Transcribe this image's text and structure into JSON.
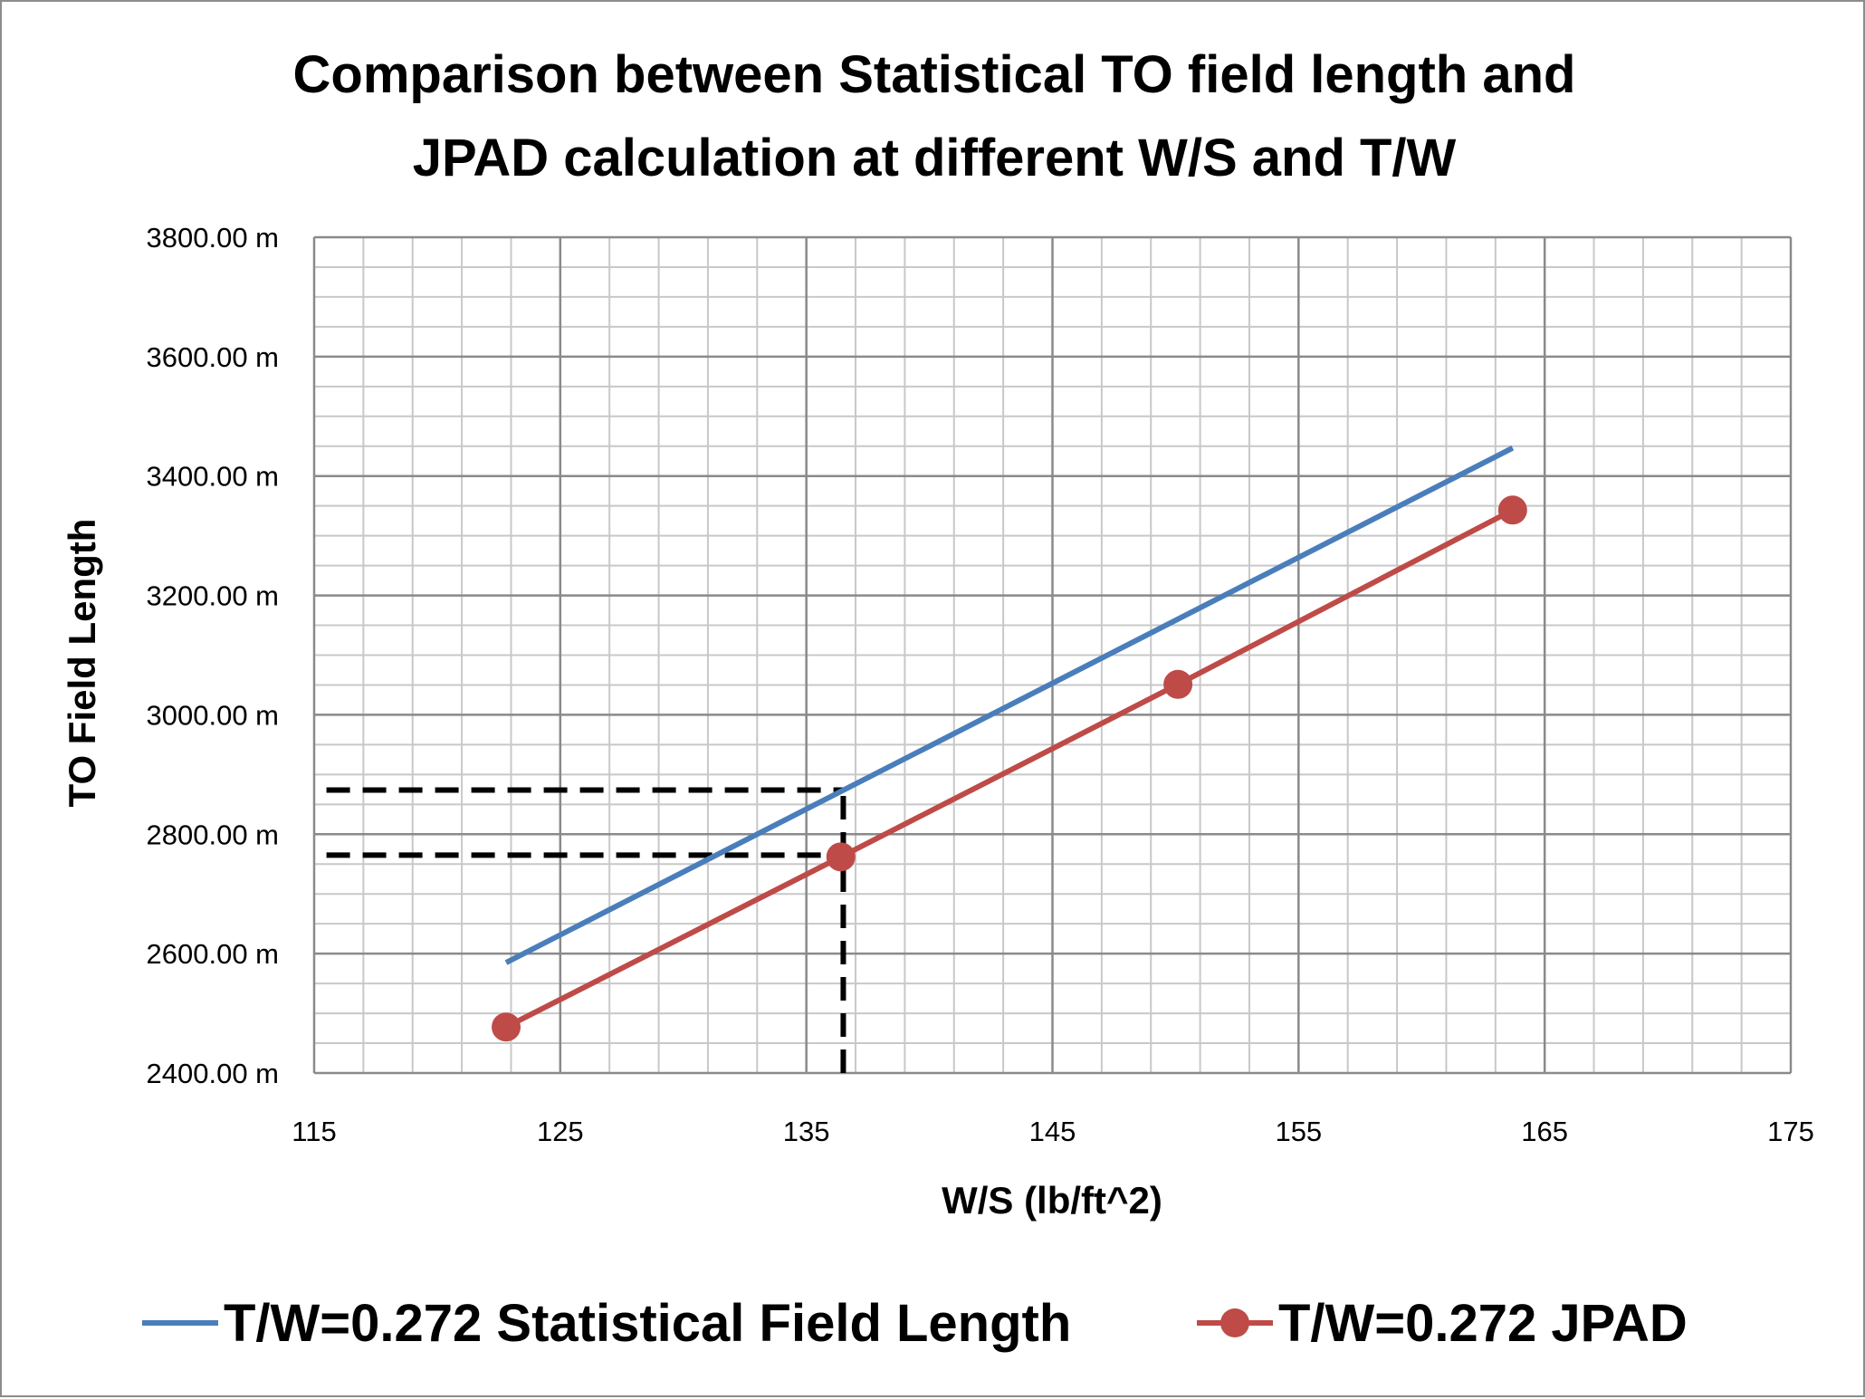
{
  "chart_data": {
    "type": "line",
    "title": "Comparison between Statistical TO field length and JPAD calculation at different W/S and T/W",
    "title_lines": [
      "Comparison between Statistical TO field length and",
      "JPAD calculation at different W/S and T/W"
    ],
    "xlabel": "W/S (lb/ft^2)",
    "ylabel": "TO Field Length",
    "xlim": [
      115,
      175
    ],
    "ylim": [
      2400,
      3800
    ],
    "x_major_step": 10,
    "x_minor_step": 2,
    "y_major_step": 200,
    "y_minor_step": 50,
    "x_tick_labels": [
      "115",
      "125",
      "135",
      "145",
      "155",
      "165",
      "175"
    ],
    "y_tick_labels": [
      "2400.00 m",
      "2600.00 m",
      "2800.00 m",
      "3000.00 m",
      "3200.00 m",
      "3400.00 m",
      "3600.00 m",
      "3800.00 m"
    ],
    "grid": true,
    "legend_position": "bottom",
    "series": [
      {
        "name": "T/W=0.272 Statistical Field Length",
        "color": "#4a7ebb",
        "markers": false,
        "x": [
          122.8,
          163.7
        ],
        "y": [
          2585,
          3447
        ]
      },
      {
        "name": "T/W=0.272 JPAD",
        "color": "#be4b48",
        "markers": true,
        "x": [
          122.8,
          136.4,
          150.1,
          163.7
        ],
        "y": [
          2477,
          2762,
          3051,
          3343
        ]
      }
    ],
    "annotations": [
      {
        "type": "dashed-horizontal",
        "color": "#000000",
        "x": [
          115.5,
          136.5
        ],
        "y": 2874
      },
      {
        "type": "dashed-horizontal",
        "color": "#000000",
        "x": [
          115.5,
          136.5
        ],
        "y": 2765
      },
      {
        "type": "dashed-vertical",
        "color": "#000000",
        "x": 136.5,
        "y": [
          2400,
          2874
        ]
      }
    ]
  }
}
